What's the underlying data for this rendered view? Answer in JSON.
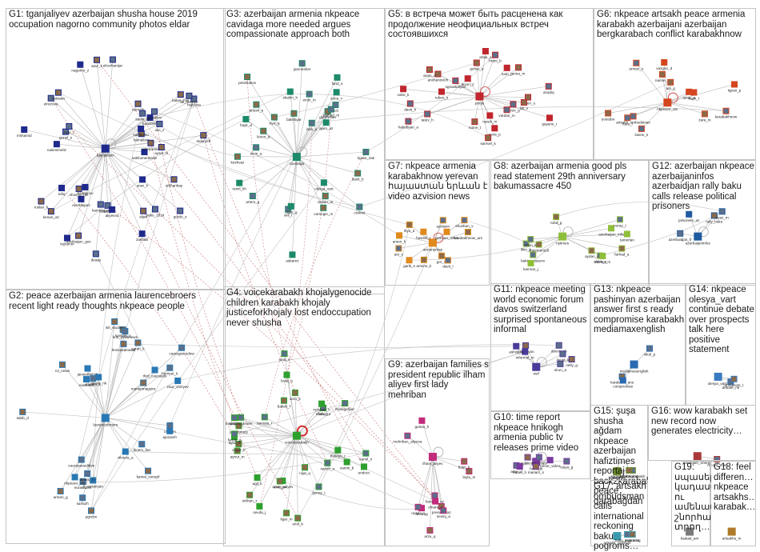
{
  "groups": [
    {
      "id": "G1",
      "label": "G1: tganjaliyev azerbaijan shusha house 2019 occupation nagorno community photos eldar",
      "color": "#1f2a8c"
    },
    {
      "id": "G2",
      "label": "G2: peace azerbaijan armenia laurencebroers recent light ready thoughts nkpeace people",
      "color": "#2a78b4"
    },
    {
      "id": "G3",
      "label": "G3: azerbaijan armenia nkpeace cavidaga more needed argues compassionate approach both",
      "color": "#1d8a6a"
    },
    {
      "id": "G4",
      "label": "G4: voicekarabakh khojalygenocide children karabakh khojaly justiceforkhojaly lost endoccupation never shusha",
      "color": "#2ea02e"
    },
    {
      "id": "G5",
      "label": "G5: в встреча может быть расценена как продолжение неофициальных встреч состоявшихся",
      "color": "#c0262d"
    },
    {
      "id": "G6",
      "label": "G6: nkpeace artsakh peace armenia karabakh azerbaijani azerbaijan bergkarabach conflict karabakhnow",
      "color": "#d4461f"
    },
    {
      "id": "G7",
      "label": "G7: nkpeace armenia karabakhnow yerevan հայաստան երևան է video azvision news",
      "color": "#e08a1e"
    },
    {
      "id": "G8",
      "label": "G8: azerbaijan armenia good pls read statement 29th anniversary bakumassacre 450",
      "color": "#8fbf3a"
    },
    {
      "id": "G9",
      "label": "G9: azerbaijan families s president republic ilham aliyev first lady mehriban",
      "color": "#c22a7a"
    },
    {
      "id": "G10",
      "label": "G10: time report nkpeace hnikogh armenia public tv releases prime video",
      "color": "#7a3aa0"
    },
    {
      "id": "G11",
      "label": "G11: nkpeace meeting world economic forum davos switzerland surprised spontaneous informal",
      "color": "#4a3a9a"
    },
    {
      "id": "G12",
      "label": "G12: azerbaijan nkpeace azerbaijaninfos azerbaidjan rally baku calls release political prisoners",
      "color": "#1e5aa0"
    },
    {
      "id": "G13",
      "label": "G13: nkpeace pashinyan azerbaijan answer first s ready compromise karabakh mediamaxenglish",
      "color": "#2a6ab0"
    },
    {
      "id": "G14",
      "label": "G14: nkpeace olesya_vart continue debate over prospects talk here positive statement",
      "color": "#3a7ac0"
    },
    {
      "id": "G15",
      "label": "G15: şuşa shusha ağdam nkpeace azerbaijan hafiztimes reportaj back2karabakh peace qarabağdan",
      "color": "#6a8a2a"
    },
    {
      "id": "G16",
      "label": "G16: wow karabakh set new record now generates electricity…",
      "color": "#aa3a3a"
    },
    {
      "id": "G17",
      "label": "G17: artsakh ombudsman calls international reckoning baku pogroms…",
      "color": "#3a9ab0"
    },
    {
      "id": "G18",
      "label": "G18: feel differen… nkpeace artsakhs… karabak…",
      "color": "#b07a2a"
    },
    {
      "id": "G19",
      "label": "G19: սպասել կադաստ ու ամենապես շնորհակալ տրող…",
      "color": "#7a7a7a"
    }
  ],
  "nodes": {
    "G1": [
      "tganjaliyev",
      "gordo_s",
      "fatmalizer",
      "sakhumeneratv",
      "elnurhamjar",
      "baker_mia",
      "azerbaijani",
      "deasp",
      "azerpress",
      "balmanov",
      "kamranjan",
      "narisuh",
      "tural1990",
      "hajiyeva",
      "azerbaijan_gov",
      "nasimimeliz",
      "ismailtov",
      "eldaryeff",
      "sahilbaku",
      "ali_huseyn",
      "shusha_net",
      "nagorno_z",
      "cokaliyev",
      "aysel_m",
      "mshamid",
      "elnurova",
      "kenan_az",
      "leylamm",
      "baku_2019",
      "orkhanbay",
      "zarifalili",
      "ulvi_z",
      "natavan",
      "anar_h",
      "gunel_s",
      "eljan",
      "aliyevna",
      "zaur_r",
      "araz_k",
      "tofiq",
      "samir_m",
      "ruslan_b"
    ],
    "G2": [
      "laurencebroers",
      "carnegieendow",
      "tabib_d",
      "jamiedbritish",
      "eurasianet",
      "thomasdewaal",
      "o_vartanyan",
      "sarfazh",
      "kamal_ismayil",
      "peace_nk",
      "cs_arm",
      "rvi_news",
      "eastbook",
      "marina_k",
      "samvel_g",
      "zaur_shiriyev",
      "caucasusedition",
      "isrl_studies",
      "nkpeace_org",
      "lboers_fan",
      "pgrebn",
      "ajozamh",
      "bne_intellinews",
      "armen_g",
      "viktoria_a",
      "hurriyet_k",
      "marianmaguire",
      "rferl_caucasus",
      "dinaru_m",
      "sarah_k"
    ],
    "G3": [
      "cavidaga",
      "ecfr",
      "pmishakov",
      "ajam_az",
      "jamnesher",
      "keshvaz",
      "ramil_kh",
      "beh_a",
      "carnegie_m",
      "asbarez",
      "civilnet",
      "anush_s",
      "olesya_vart",
      "ara_t",
      "arstan_m",
      "shahin_h",
      "elcin_a",
      "gahraman",
      "nigar_g",
      "tigran_zak",
      "davit_b",
      "sona_v",
      "artem_g",
      "levon_a",
      "hayk_d",
      "emin_m",
      "bakhtiyar",
      "farid_s",
      "rashad_m",
      "ziya_a"
    ],
    "G4": [
      "voicekarabakh",
      "khojaly_lost",
      "aynur_m",
      "anar_guliyev",
      "frankgollyer",
      "jannetmary",
      "shahin_a",
      "kamala_r",
      "ilgar_m",
      "zamin_b",
      "lala_h",
      "vugar_k",
      "endocc",
      "tural_s",
      "nijat_q",
      "aysu_n",
      "farida_g",
      "elvin_m",
      "huseyn_r",
      "shusha_never",
      "arzu_k",
      "leyla_a",
      "gunay_t",
      "babek_f",
      "rovshan_h",
      "nazrin_o",
      "orkhan_z",
      "sevda_j",
      "kamil_n",
      "emil_b",
      "agil_k"
    ],
    "G5": [
      "pmyb",
      "azadiq",
      "anxhanovich",
      "narek_m",
      "ognaskalyan",
      "armen_u",
      "levon_z",
      "tatev_h",
      "gohar_a",
      "nairi_p",
      "hakobyan_a",
      "mane_t",
      "vahe_k",
      "suren_g",
      "anna_m",
      "ruben_s",
      "davit_h",
      "lilit_v",
      "gayane_r",
      "hrant_b",
      "aram_d",
      "sona_p",
      "vardan_m",
      "samvel_k",
      "artak_a"
    ],
    "G6": [
      "nkpeace_am",
      "artsakh_ombudsman",
      "youtube",
      "tigran_p",
      "karabakhnow",
      "narine_a",
      "mher_s",
      "lusine_k",
      "ani_g",
      "hayk_t",
      "arman_v",
      "zara_m",
      "vazgen_d",
      "nare_l"
    ],
    "G7": [
      "armenpress",
      "azvision",
      "karabakhnow_am",
      "yerevan_news",
      "ani_s",
      "gor_m",
      "arsen_h",
      "shushan_v",
      "armine_k",
      "hasmik_t",
      "davit_l",
      "lilya_a",
      "garik_s"
    ],
    "G8": [
      "nytimes",
      "bakumassacre",
      "statement29",
      "azerbaijan_mfa",
      "elmin_s",
      "farhad_a",
      "kamran_j",
      "nuray_t",
      "rufat_g",
      "sabina_m",
      "ilkin_b",
      "aydan_r",
      "tamerlan",
      "emin_k"
    ],
    "G9": [
      "ilham_aliyev",
      "mehriban_aliyeva",
      "presidentaz",
      "azertag",
      "families_az",
      "leyla_m",
      "gulnar_h",
      "sevinj_a",
      "arzu_q",
      "elnara_z",
      "ramila_t",
      "fidan_k"
    ],
    "G10": [
      "hnikogh",
      "armeniatv",
      "public_tv",
      "prime_video",
      "artur_d",
      "mariam_s",
      "karen_h",
      "lusya_g"
    ],
    "G11": [
      "wef",
      "davos_ch",
      "pashinyan",
      "informal_m",
      "david_k",
      "nelly_g",
      "ashot_m",
      "sirun_a"
    ],
    "G12": [
      "azerbaijaninfos",
      "azerbaidjan_fr",
      "rally_baku",
      "prisoners_az",
      "ayaz_m"
    ],
    "G13": [
      "mediamaxenglish",
      "nikol_p",
      "karabakh_ans",
      "compromise"
    ],
    "G14": [
      "olesya_vart2",
      "debate_nk",
      "prospects_t"
    ],
    "G15": [
      "hafiztimes",
      "back2karabakh",
      "qarabagdan",
      "agdam_x"
    ],
    "G16": [
      "karabakh_energy",
      "record_now"
    ],
    "G17": [
      "artsakh_ombuds",
      "baku_pogroms",
      "reckoning"
    ],
    "G18": [
      "artsakhs_m"
    ],
    "G19": [
      "kadast_am"
    ]
  }
}
